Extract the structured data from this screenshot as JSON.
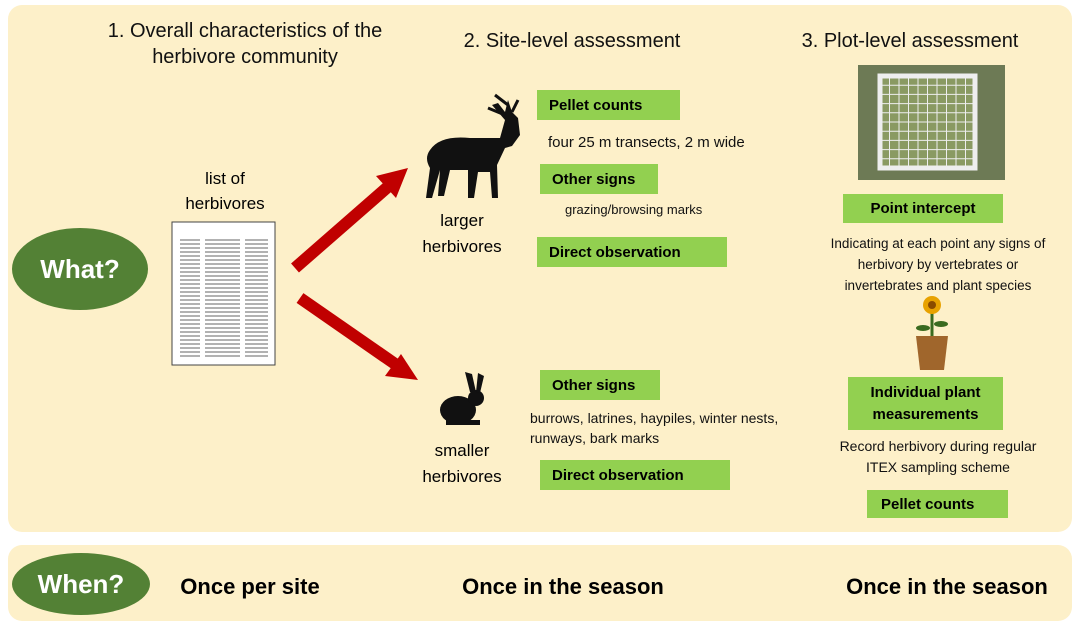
{
  "what": "What?",
  "when": "When?",
  "sections": [
    {
      "title": "1. Overall characteristics of the herbivore community",
      "list_label": "list of herbivores",
      "when": "Once per site"
    },
    {
      "title": "2. Site-level assessment",
      "when": "Once in the season"
    },
    {
      "title": "3. Plot-level assessment",
      "when": "Once in the season"
    }
  ],
  "larger": {
    "label": "larger herbivores",
    "methods": [
      {
        "name": "Pellet counts",
        "note": "four 25 m transects, 2 m wide"
      },
      {
        "name": "Other signs",
        "note": "grazing/browsing marks"
      },
      {
        "name": "Direct observation"
      }
    ]
  },
  "smaller": {
    "label": "smaller herbivores",
    "methods": [
      {
        "name": "Other signs",
        "note": "burrows, latrines, haypiles, winter nests, runways, bark marks"
      },
      {
        "name": "Direct observation"
      }
    ]
  },
  "plot": {
    "methods": [
      {
        "name": "Point intercept",
        "note": "Indicating at each point any signs of herbivory by vertebrates or invertebrates and plant species"
      },
      {
        "name": "Individual plant measurements",
        "note": "Record herbivory during regular ITEX sampling scheme"
      },
      {
        "name": "Pellet counts"
      }
    ]
  }
}
